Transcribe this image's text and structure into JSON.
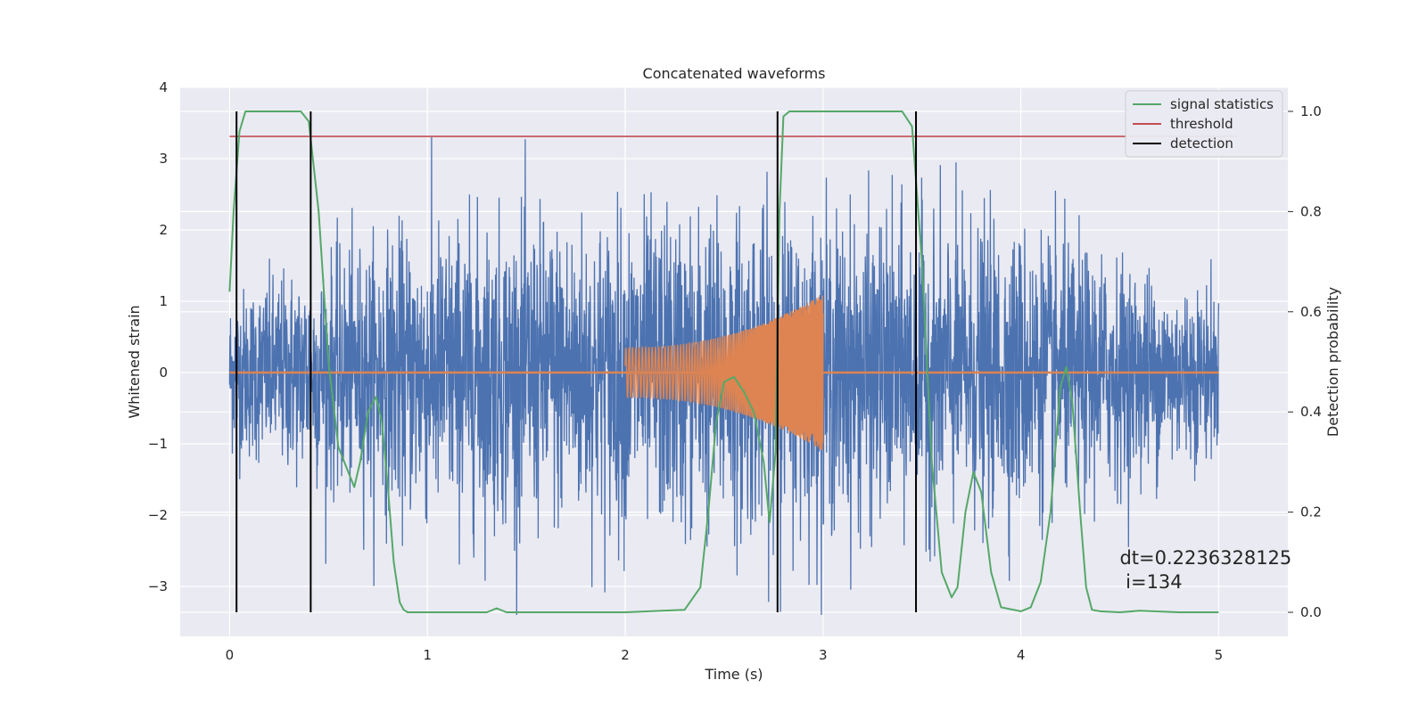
{
  "chart_data": {
    "type": "line",
    "title": "Concatenated waveforms",
    "xlabel": "Time (s)",
    "ylabel": "Whitened strain",
    "y2label": "Detection probability",
    "xlim": [
      -0.25,
      5.35
    ],
    "ylim": [
      -3.7,
      4.0
    ],
    "y2lim": [
      -0.048,
      1.048
    ],
    "xticks": [
      0,
      1,
      2,
      3,
      4,
      5
    ],
    "yticks": [
      -3,
      -2,
      -1,
      0,
      1,
      2,
      3,
      4
    ],
    "y2ticks": [
      0.0,
      0.2,
      0.4,
      0.6,
      0.8,
      1.0
    ],
    "xtick_labels": [
      "0",
      "1",
      "2",
      "3",
      "4",
      "5"
    ],
    "ytick_labels": [
      "−3",
      "−2",
      "−1",
      "0",
      "1",
      "2",
      "3",
      "4"
    ],
    "y2tick_labels": [
      "0.0",
      "0.2",
      "0.4",
      "0.6",
      "0.8",
      "1.0"
    ],
    "grid": true,
    "legend_position": "top-right",
    "colors": {
      "background": "#eaeaf2",
      "grid": "#ffffff",
      "strain": "#4c72b0",
      "waveform": "#dd8452",
      "signal_statistics": "#55a868",
      "threshold": "#c44e52",
      "detection": "#000000"
    },
    "series": [
      {
        "name": "",
        "axis": "left",
        "kind": "noise",
        "x_range": [
          0,
          5
        ],
        "envelope": [
          [
            0,
            1.3
          ],
          [
            1.0,
            2.4
          ],
          [
            2.5,
            2.6
          ],
          [
            4.0,
            2.3
          ],
          [
            5.0,
            1.3
          ]
        ],
        "peak_max": 3.65,
        "trough_min": -3.4
      },
      {
        "name": "",
        "axis": "left",
        "kind": "chirp",
        "x_range": [
          2.0,
          3.0
        ],
        "amplitude_start": 0.35,
        "amplitude_end": 1.1
      },
      {
        "name": "signal statistics",
        "axis": "right",
        "x": [
          0.0,
          0.02,
          0.05,
          0.08,
          0.1,
          0.15,
          0.3,
          0.36,
          0.4,
          0.45,
          0.5,
          0.55,
          0.6,
          0.63,
          0.66,
          0.7,
          0.74,
          0.77,
          0.8,
          0.83,
          0.86,
          0.88,
          0.9,
          1.0,
          1.2,
          1.3,
          1.35,
          1.4,
          1.6,
          2.0,
          2.3,
          2.38,
          2.42,
          2.46,
          2.5,
          2.55,
          2.6,
          2.65,
          2.7,
          2.73,
          2.76,
          2.78,
          2.8,
          2.83,
          3.4,
          3.45,
          3.5,
          3.55,
          3.6,
          3.65,
          3.68,
          3.72,
          3.76,
          3.8,
          3.85,
          3.9,
          4.0,
          4.05,
          4.1,
          4.15,
          4.2,
          4.23,
          4.26,
          4.3,
          4.33,
          4.36,
          4.4,
          4.5,
          4.6,
          4.8,
          5.0
        ],
        "values": [
          0.64,
          0.8,
          0.96,
          1.0,
          1.0,
          1.0,
          1.0,
          1.0,
          0.98,
          0.8,
          0.5,
          0.33,
          0.28,
          0.25,
          0.3,
          0.4,
          0.43,
          0.38,
          0.25,
          0.1,
          0.02,
          0.005,
          0.0,
          0.0,
          0.0,
          0.0,
          0.008,
          0.0,
          0.0,
          0.0,
          0.005,
          0.05,
          0.2,
          0.38,
          0.46,
          0.47,
          0.44,
          0.4,
          0.3,
          0.18,
          0.32,
          0.8,
          0.99,
          1.0,
          1.0,
          0.97,
          0.7,
          0.3,
          0.08,
          0.03,
          0.05,
          0.2,
          0.28,
          0.24,
          0.08,
          0.01,
          0.002,
          0.01,
          0.06,
          0.2,
          0.45,
          0.49,
          0.42,
          0.2,
          0.05,
          0.005,
          0.002,
          0.0,
          0.003,
          0.0,
          0.0
        ]
      },
      {
        "name": "threshold",
        "axis": "right",
        "x": [
          0,
          5.1
        ],
        "values": [
          0.95,
          0.95
        ]
      },
      {
        "name": "detection",
        "axis": "right",
        "kind": "vlines",
        "x": [
          0.035,
          0.41,
          2.77,
          3.47
        ],
        "y_range": [
          0.0,
          1.0
        ]
      }
    ],
    "annotation": {
      "line1": "dt=0.2236328125",
      "line2": " i=134",
      "x": 4.5,
      "y": -2.6
    }
  }
}
